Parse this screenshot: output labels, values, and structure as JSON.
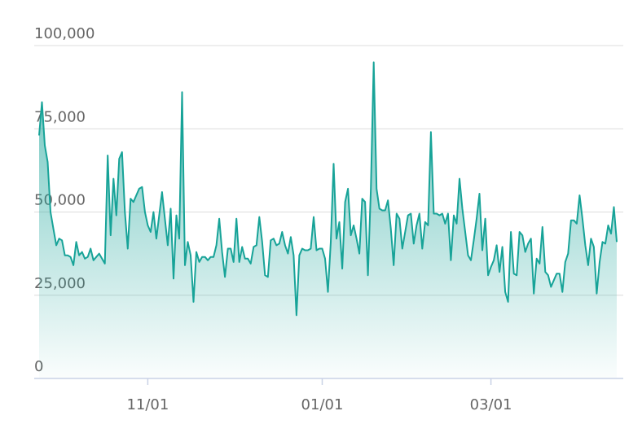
{
  "chart_data": {
    "type": "area",
    "color": "#17a398",
    "grid": true,
    "categories": [
      null,
      null,
      null,
      null,
      null,
      null,
      null,
      null,
      null,
      null,
      null,
      null,
      null,
      null,
      null,
      null,
      null,
      null,
      null,
      null,
      null,
      null,
      null,
      null,
      null,
      null,
      null,
      null,
      null,
      null,
      null,
      null,
      null,
      null,
      null,
      null,
      null,
      null,
      "11/01",
      null,
      null,
      null,
      null,
      null,
      null,
      null,
      null,
      null,
      null,
      null,
      null,
      null,
      null,
      null,
      null,
      null,
      null,
      null,
      null,
      null,
      null,
      null,
      null,
      null,
      null,
      null,
      null,
      null,
      null,
      null,
      null,
      null,
      null,
      null,
      null,
      null,
      null,
      null,
      null,
      null,
      null,
      null,
      null,
      null,
      null,
      null,
      null,
      null,
      null,
      null,
      null,
      null,
      null,
      null,
      null,
      null,
      null,
      null,
      null,
      "01/01",
      null,
      null,
      null,
      null,
      null,
      null,
      null,
      null,
      null,
      null,
      null,
      null,
      null,
      null,
      null,
      null,
      null,
      null,
      null,
      null,
      null,
      null,
      null,
      null,
      null,
      null,
      null,
      null,
      null,
      null,
      null,
      null,
      null,
      null,
      null,
      null,
      null,
      null,
      null,
      null,
      null,
      null,
      null,
      null,
      null,
      null,
      null,
      null,
      null,
      null,
      null,
      null,
      null,
      null,
      null,
      null,
      null,
      null,
      "03/01",
      null,
      null,
      null,
      null,
      null,
      null,
      null,
      null,
      null,
      null,
      null,
      null,
      null,
      null,
      null,
      null,
      null,
      null,
      null,
      null,
      null,
      null,
      null,
      null,
      null,
      null,
      null,
      null,
      null,
      null,
      null,
      null,
      null,
      null,
      null,
      null,
      null,
      null,
      null,
      null,
      null,
      null,
      null,
      null
    ],
    "values": [
      73000,
      83000,
      70000,
      65000,
      50000,
      45000,
      40000,
      42000,
      41500,
      37000,
      37000,
      36500,
      34000,
      41000,
      37000,
      38000,
      36000,
      36500,
      39000,
      35500,
      36500,
      37500,
      36000,
      34500,
      67000,
      43000,
      60000,
      49000,
      66000,
      68000,
      50000,
      39000,
      54000,
      53000,
      55000,
      57000,
      57500,
      50000,
      46000,
      44000,
      50000,
      42000,
      49000,
      56000,
      48000,
      40000,
      51000,
      30000,
      49000,
      42000,
      86000,
      34000,
      41000,
      37000,
      23000,
      38000,
      35000,
      36500,
      36500,
      35500,
      36500,
      36500,
      40000,
      48000,
      38000,
      30500,
      39000,
      39000,
      35000,
      48000,
      35000,
      39500,
      36000,
      36000,
      34500,
      39500,
      40000,
      48500,
      41000,
      31000,
      30500,
      41500,
      42000,
      40000,
      40500,
      44000,
      40000,
      37500,
      42500,
      37000,
      19000,
      37000,
      39000,
      38500,
      38500,
      39000,
      48500,
      38500,
      39000,
      39000,
      36000,
      26000,
      41000,
      64500,
      42000,
      47000,
      33000,
      53000,
      57000,
      43000,
      46000,
      42000,
      37500,
      54000,
      53000,
      31000,
      57000,
      95000,
      57000,
      51000,
      50500,
      50500,
      53500,
      45000,
      34000,
      49500,
      48000,
      39000,
      44000,
      49000,
      49500,
      40500,
      46000,
      49500,
      39000,
      47000,
      46000,
      74000,
      49500,
      49500,
      49000,
      49500,
      46500,
      49500,
      35500,
      49000,
      46500,
      60000,
      51000,
      44000,
      37000,
      35500,
      41500,
      48000,
      55500,
      38500,
      48000,
      31000,
      33500,
      35500,
      40000,
      32000,
      39500,
      26000,
      23000,
      44000,
      31500,
      31000,
      44000,
      43000,
      38000,
      40500,
      42000,
      25500,
      36000,
      34500,
      45500,
      32000,
      31000,
      27500,
      29500,
      31500,
      31500,
      26000,
      35000,
      37500,
      47500,
      47500,
      46500,
      55000,
      48000,
      40000,
      34000,
      42000,
      39500,
      25500,
      35000,
      41000,
      40500,
      46000,
      43500,
      51500,
      41000
    ],
    "ylim": [
      0,
      100000
    ],
    "yticks": [
      0,
      {
        "value": 25000,
        "label": "25,000"
      },
      {
        "value": 50000,
        "label": "50,000"
      },
      {
        "value": 75000,
        "label": "75,000"
      },
      {
        "value": 100000,
        "label": "100,000"
      }
    ]
  }
}
